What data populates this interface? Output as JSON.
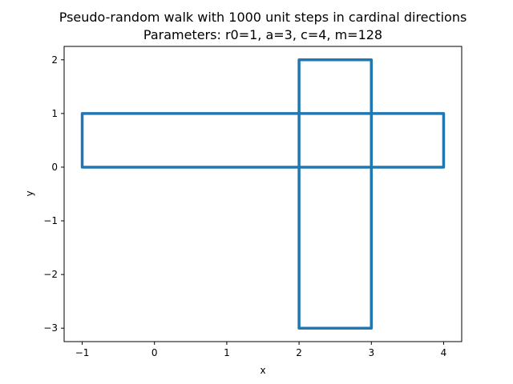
{
  "chart_data": {
    "type": "line",
    "title": "Pseudo-random walk with 1000 unit steps in cardinal directions",
    "subtitle": "Parameters: r0=1, a=3, c=4, m=128",
    "xlabel": "x",
    "ylabel": "y",
    "xlim": [
      -1.25,
      4.25
    ],
    "ylim": [
      -3.25,
      2.25
    ],
    "x_ticks": [
      -1,
      0,
      1,
      2,
      3,
      4
    ],
    "y_ticks": [
      -3,
      -2,
      -1,
      0,
      1,
      2
    ],
    "x_tick_labels": [
      "−1",
      "0",
      "1",
      "2",
      "3",
      "4"
    ],
    "y_tick_labels": [
      "−3",
      "−2",
      "−1",
      "0",
      "1",
      "2"
    ],
    "grid": false,
    "series": [
      {
        "color": "#1f77b4",
        "x": [
          -1,
          4,
          4,
          -1,
          -1,
          2,
          2,
          3,
          3,
          2,
          2
        ],
        "y": [
          0,
          0,
          1,
          1,
          0,
          0,
          2,
          2,
          -3,
          -3,
          0
        ]
      }
    ]
  }
}
